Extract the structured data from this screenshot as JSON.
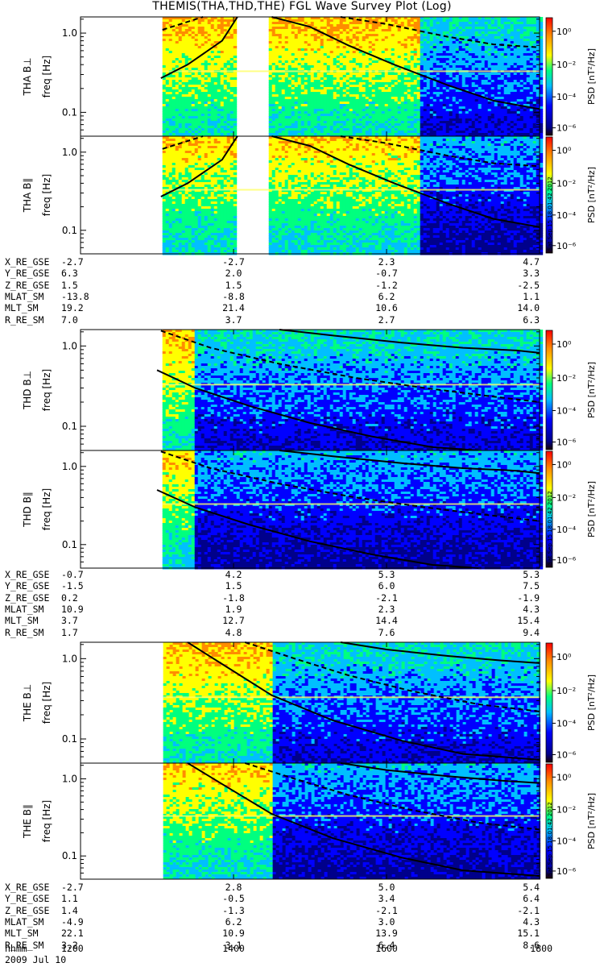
{
  "chart_data": {
    "type": "heatmap",
    "title": "THEMIS(THA,THD,THE) FGL Wave Survey Plot (Log)",
    "date_label": "2009 Jul 10",
    "timestamp_label": "Sat Sep 15 18:01:42 2012",
    "x_axis": {
      "label": "hhmm",
      "ticks": [
        "1200",
        "1400",
        "1600",
        "1800"
      ],
      "range_hhmm": [
        "1200",
        "1800"
      ]
    },
    "y_axis": {
      "label": "freq [Hz]",
      "scale": "log",
      "range": [
        0.05,
        1.6
      ],
      "ticks": [
        "0.1",
        "1.0"
      ]
    },
    "colorbar": {
      "label": "PSD [nT²/Hz]",
      "scale": "log",
      "ticks": [
        "10⁰",
        "10⁻²",
        "10⁻⁴",
        "10⁻⁶"
      ],
      "colors": [
        "#1a0000",
        "#00008b",
        "#0000ff",
        "#00bfff",
        "#00ff7f",
        "#ffff00",
        "#ff8c00",
        "#ff0000"
      ]
    },
    "panels": [
      {
        "label": "THA B⊥",
        "probe": "THA",
        "component": "perp"
      },
      {
        "label": "THA B∥",
        "probe": "THA",
        "component": "par"
      },
      {
        "label": "THD B⊥",
        "probe": "THD",
        "component": "perp"
      },
      {
        "label": "THD B∥",
        "probe": "THD",
        "component": "par"
      },
      {
        "label": "THE B⊥",
        "probe": "THE",
        "component": "perp"
      },
      {
        "label": "THE B∥",
        "probe": "THE",
        "component": "par"
      }
    ],
    "ephemeris": [
      {
        "probe": "THA",
        "rows": [
          {
            "label": "X_RE_GSE",
            "values": [
              "-2.7",
              "-2.7",
              "2.3",
              "4.7"
            ]
          },
          {
            "label": "Y_RE_GSE",
            "values": [
              "6.3",
              "2.0",
              "-0.7",
              "3.3"
            ]
          },
          {
            "label": "Z_RE_GSE",
            "values": [
              "1.5",
              "1.5",
              "-1.2",
              "-2.5"
            ]
          },
          {
            "label": "MLAT_SM",
            "values": [
              "-13.8",
              "-8.8",
              "6.2",
              "1.1"
            ]
          },
          {
            "label": "MLT_SM",
            "values": [
              "19.2",
              "21.4",
              "10.6",
              "14.0"
            ]
          },
          {
            "label": "R_RE_SM",
            "values": [
              "7.0",
              "3.7",
              "2.7",
              "6.3"
            ]
          }
        ]
      },
      {
        "probe": "THD",
        "rows": [
          {
            "label": "X_RE_GSE",
            "values": [
              "-0.7",
              "4.2",
              "5.3",
              "5.3"
            ]
          },
          {
            "label": "Y_RE_GSE",
            "values": [
              "-1.5",
              "1.5",
              "6.0",
              "7.5"
            ]
          },
          {
            "label": "Z_RE_GSE",
            "values": [
              "0.2",
              "-1.8",
              "-2.1",
              "-1.9"
            ]
          },
          {
            "label": "MLAT_SM",
            "values": [
              "10.9",
              "1.9",
              "2.3",
              "4.3"
            ]
          },
          {
            "label": "MLT_SM",
            "values": [
              "3.7",
              "12.7",
              "14.4",
              "15.4"
            ]
          },
          {
            "label": "R_RE_SM",
            "values": [
              "1.7",
              "4.8",
              "7.6",
              "9.4"
            ]
          }
        ]
      },
      {
        "probe": "THE",
        "rows": [
          {
            "label": "X_RE_GSE",
            "values": [
              "-2.7",
              "2.8",
              "5.0",
              "5.4"
            ]
          },
          {
            "label": "Y_RE_GSE",
            "values": [
              "1.1",
              "-0.5",
              "3.4",
              "6.4"
            ]
          },
          {
            "label": "Z_RE_GSE",
            "values": [
              "1.4",
              "-1.3",
              "-2.1",
              "-2.1"
            ]
          },
          {
            "label": "MLAT_SM",
            "values": [
              "-4.9",
              "6.2",
              "3.0",
              "4.3"
            ]
          },
          {
            "label": "MLT_SM",
            "values": [
              "22.1",
              "10.9",
              "13.9",
              "15.1"
            ]
          },
          {
            "label": "R_RE_SM",
            "values": [
              "3.2",
              "3.1",
              "6.4",
              "8.6"
            ]
          }
        ]
      }
    ]
  }
}
